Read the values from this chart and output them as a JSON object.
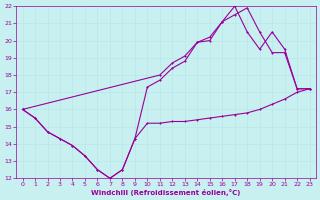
{
  "xlabel": "Windchill (Refroidissement éolien,°C)",
  "bg_color": "#c8f0f0",
  "line_color": "#990099",
  "grid_color": "#b8e8e8",
  "xlim": [
    -0.5,
    23.5
  ],
  "ylim": [
    12,
    22
  ],
  "xticks": [
    0,
    1,
    2,
    3,
    4,
    5,
    6,
    7,
    8,
    9,
    10,
    11,
    12,
    13,
    14,
    15,
    16,
    17,
    18,
    19,
    20,
    21,
    22,
    23
  ],
  "yticks": [
    12,
    13,
    14,
    15,
    16,
    17,
    18,
    19,
    20,
    21,
    22
  ],
  "line1_x": [
    0,
    1,
    2,
    3,
    4,
    5,
    6,
    7,
    8,
    9,
    10,
    11,
    12,
    13,
    14,
    15,
    16,
    17,
    18,
    19,
    20,
    21,
    22,
    23
  ],
  "line1_y": [
    16.0,
    15.5,
    14.7,
    14.3,
    13.9,
    13.3,
    12.5,
    12.0,
    12.5,
    14.3,
    15.2,
    15.2,
    15.3,
    15.3,
    15.4,
    15.5,
    15.6,
    15.7,
    15.8,
    16.0,
    16.3,
    16.6,
    17.0,
    17.2
  ],
  "line2_x": [
    0,
    1,
    2,
    3,
    4,
    5,
    6,
    7,
    8,
    9,
    10,
    11,
    12,
    13,
    14,
    15,
    16,
    17,
    18,
    19,
    20,
    21,
    22,
    23
  ],
  "line2_y": [
    16.0,
    15.5,
    14.7,
    14.3,
    13.9,
    13.3,
    12.5,
    12.0,
    12.5,
    14.3,
    17.3,
    17.7,
    18.4,
    18.8,
    19.9,
    20.0,
    21.1,
    21.5,
    21.9,
    20.5,
    19.3,
    19.3,
    17.2,
    17.2
  ],
  "line3_x": [
    0,
    11,
    12,
    13,
    14,
    15,
    16,
    17,
    18,
    19,
    20,
    21,
    22,
    23
  ],
  "line3_y": [
    16.0,
    18.0,
    18.7,
    19.1,
    19.9,
    20.2,
    21.1,
    22.0,
    20.5,
    19.5,
    20.5,
    19.5,
    17.2,
    17.2
  ]
}
